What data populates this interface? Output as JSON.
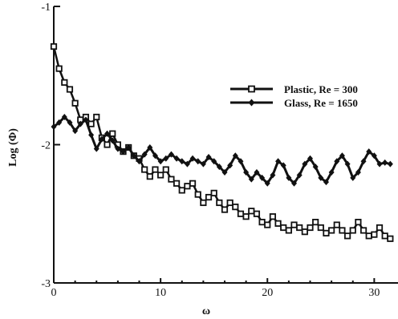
{
  "chart_data": {
    "type": "line",
    "title": "",
    "xlabel": "ω",
    "ylabel": "Log (Φ)",
    "xlim": [
      0,
      32
    ],
    "ylim": [
      -3,
      -1
    ],
    "xticks": [
      0,
      10,
      20,
      30
    ],
    "yticks": [
      -3,
      -2,
      -1
    ],
    "grid": false,
    "legend_position": "upper-right",
    "series": [
      {
        "name": "Plastic, Re = 300",
        "marker": "open-square",
        "color": "#111111",
        "x": [
          0,
          0.5,
          1,
          1.5,
          2,
          2.5,
          3,
          3.5,
          4,
          4.5,
          5,
          5.5,
          6,
          6.5,
          7,
          7.5,
          8,
          8.5,
          9,
          9.5,
          10,
          10.5,
          11,
          11.5,
          12,
          12.5,
          13,
          13.5,
          14,
          14.5,
          15,
          15.5,
          16,
          16.5,
          17,
          17.5,
          18,
          18.5,
          19,
          19.5,
          20,
          20.5,
          21,
          21.5,
          22,
          22.5,
          23,
          23.5,
          24,
          24.5,
          25,
          25.5,
          26,
          26.5,
          27,
          27.5,
          28,
          28.5,
          29,
          29.5,
          30,
          30.5,
          31,
          31.5
        ],
        "y": [
          -1.29,
          -1.45,
          -1.55,
          -1.6,
          -1.7,
          -1.82,
          -1.8,
          -1.85,
          -1.8,
          -1.95,
          -2.0,
          -1.92,
          -2.0,
          -2.05,
          -2.02,
          -2.08,
          -2.1,
          -2.18,
          -2.23,
          -2.18,
          -2.22,
          -2.18,
          -2.25,
          -2.28,
          -2.33,
          -2.3,
          -2.28,
          -2.36,
          -2.42,
          -2.38,
          -2.35,
          -2.42,
          -2.47,
          -2.42,
          -2.45,
          -2.5,
          -2.52,
          -2.48,
          -2.5,
          -2.56,
          -2.58,
          -2.52,
          -2.57,
          -2.6,
          -2.62,
          -2.58,
          -2.6,
          -2.63,
          -2.6,
          -2.56,
          -2.6,
          -2.64,
          -2.62,
          -2.58,
          -2.62,
          -2.66,
          -2.62,
          -2.56,
          -2.62,
          -2.66,
          -2.65,
          -2.6,
          -2.66,
          -2.68
        ]
      },
      {
        "name": "Glass, Re = 1650",
        "marker": "filled-diamond",
        "color": "#111111",
        "x": [
          0,
          0.5,
          1,
          1.5,
          2,
          2.5,
          3,
          3.5,
          4,
          4.5,
          5,
          5.5,
          6,
          6.5,
          7,
          7.5,
          8,
          8.5,
          9,
          9.5,
          10,
          10.5,
          11,
          11.5,
          12,
          12.5,
          13,
          13.5,
          14,
          14.5,
          15,
          15.5,
          16,
          16.5,
          17,
          17.5,
          18,
          18.5,
          19,
          19.5,
          20,
          20.5,
          21,
          21.5,
          22,
          22.5,
          23,
          23.5,
          24,
          24.5,
          25,
          25.5,
          26,
          26.5,
          27,
          27.5,
          28,
          28.5,
          29,
          29.5,
          30,
          30.5,
          31,
          31.5
        ],
        "y": [
          -1.87,
          -1.84,
          -1.8,
          -1.84,
          -1.9,
          -1.85,
          -1.82,
          -1.93,
          -2.03,
          -1.96,
          -1.92,
          -1.97,
          -2.03,
          -2.05,
          -2.02,
          -2.08,
          -2.12,
          -2.07,
          -2.02,
          -2.08,
          -2.12,
          -2.1,
          -2.07,
          -2.1,
          -2.12,
          -2.14,
          -2.1,
          -2.12,
          -2.14,
          -2.09,
          -2.12,
          -2.16,
          -2.2,
          -2.15,
          -2.08,
          -2.12,
          -2.2,
          -2.25,
          -2.2,
          -2.24,
          -2.28,
          -2.22,
          -2.12,
          -2.15,
          -2.24,
          -2.28,
          -2.22,
          -2.14,
          -2.1,
          -2.16,
          -2.24,
          -2.27,
          -2.2,
          -2.12,
          -2.08,
          -2.14,
          -2.24,
          -2.2,
          -2.12,
          -2.05,
          -2.08,
          -2.14,
          -2.13,
          -2.14
        ]
      }
    ]
  }
}
